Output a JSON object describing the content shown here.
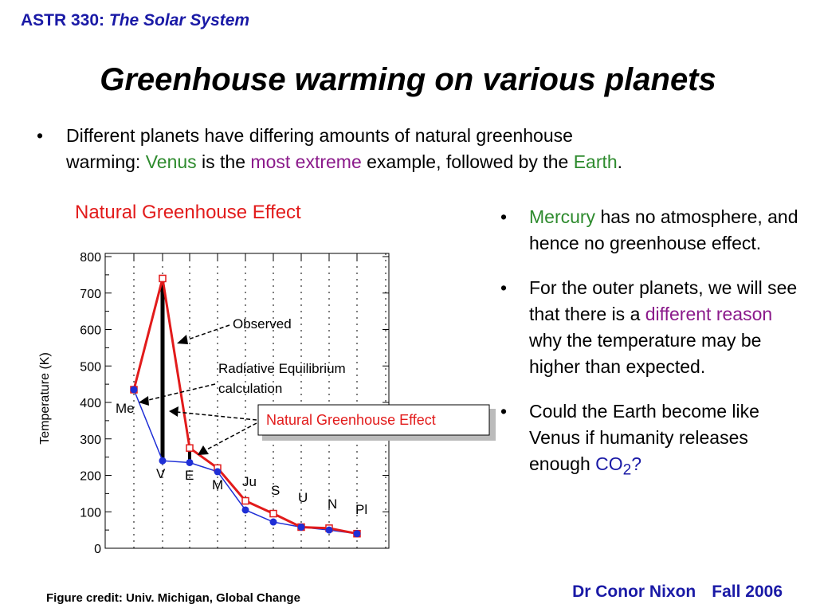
{
  "header": {
    "course_code": "ASTR 330:",
    "course_name": "The Solar System"
  },
  "slide_title": "Greenhouse warming on various planets",
  "intro": {
    "bullet": "•",
    "part1": "Different planets have differing amounts of natural greenhouse",
    "part2": "warming: ",
    "venus": "Venus",
    "part3": " is the ",
    "extreme": "most extreme",
    "part4": " example, followed by the ",
    "earth": "Earth",
    "part5": "."
  },
  "bullets": [
    {
      "highlight": "Mercury",
      "text": " has no atmosphere, and hence no greenhouse effect."
    },
    {
      "text1": "For the outer planets, we will see that there is a ",
      "highlight": "different reason",
      "text2": " why the temperature may be higher than expected."
    },
    {
      "text1": " Could the Earth become like Venus if humanity releases enough ",
      "highlight": "CO",
      "sub": "2",
      "text2": "?"
    }
  ],
  "figure_credit": "Figure credit: Univ. Michigan, Global Change",
  "footer": {
    "author": "Dr Conor Nixon",
    "term": "Fall 2006"
  },
  "chart_data": {
    "type": "line",
    "title": "Natural Greenhouse Effect",
    "ylabel": "Temperature (K)",
    "xlabel": "",
    "ylim": [
      0,
      800
    ],
    "yticks": [
      "0",
      "100",
      "200",
      "300",
      "400",
      "500",
      "600",
      "700",
      "800"
    ],
    "categories": [
      "Me",
      "V",
      "E",
      "M",
      "Ju",
      "S",
      "U",
      "N",
      "Pl"
    ],
    "series": [
      {
        "name": "Observed",
        "color": "#e21b1b",
        "values": [
          435,
          740,
          275,
          220,
          130,
          95,
          58,
          55,
          40
        ]
      },
      {
        "name": "Radiative Equilibrium calculation",
        "color": "#1f2fd6",
        "values": [
          435,
          240,
          235,
          210,
          105,
          72,
          58,
          50,
          40
        ]
      }
    ],
    "annotations": {
      "observed": "Observed",
      "radiative_line1": "Radiative Equilibrium",
      "radiative_line2": "calculation",
      "greenhouse_box": "Natural Greenhouse Effect"
    }
  }
}
